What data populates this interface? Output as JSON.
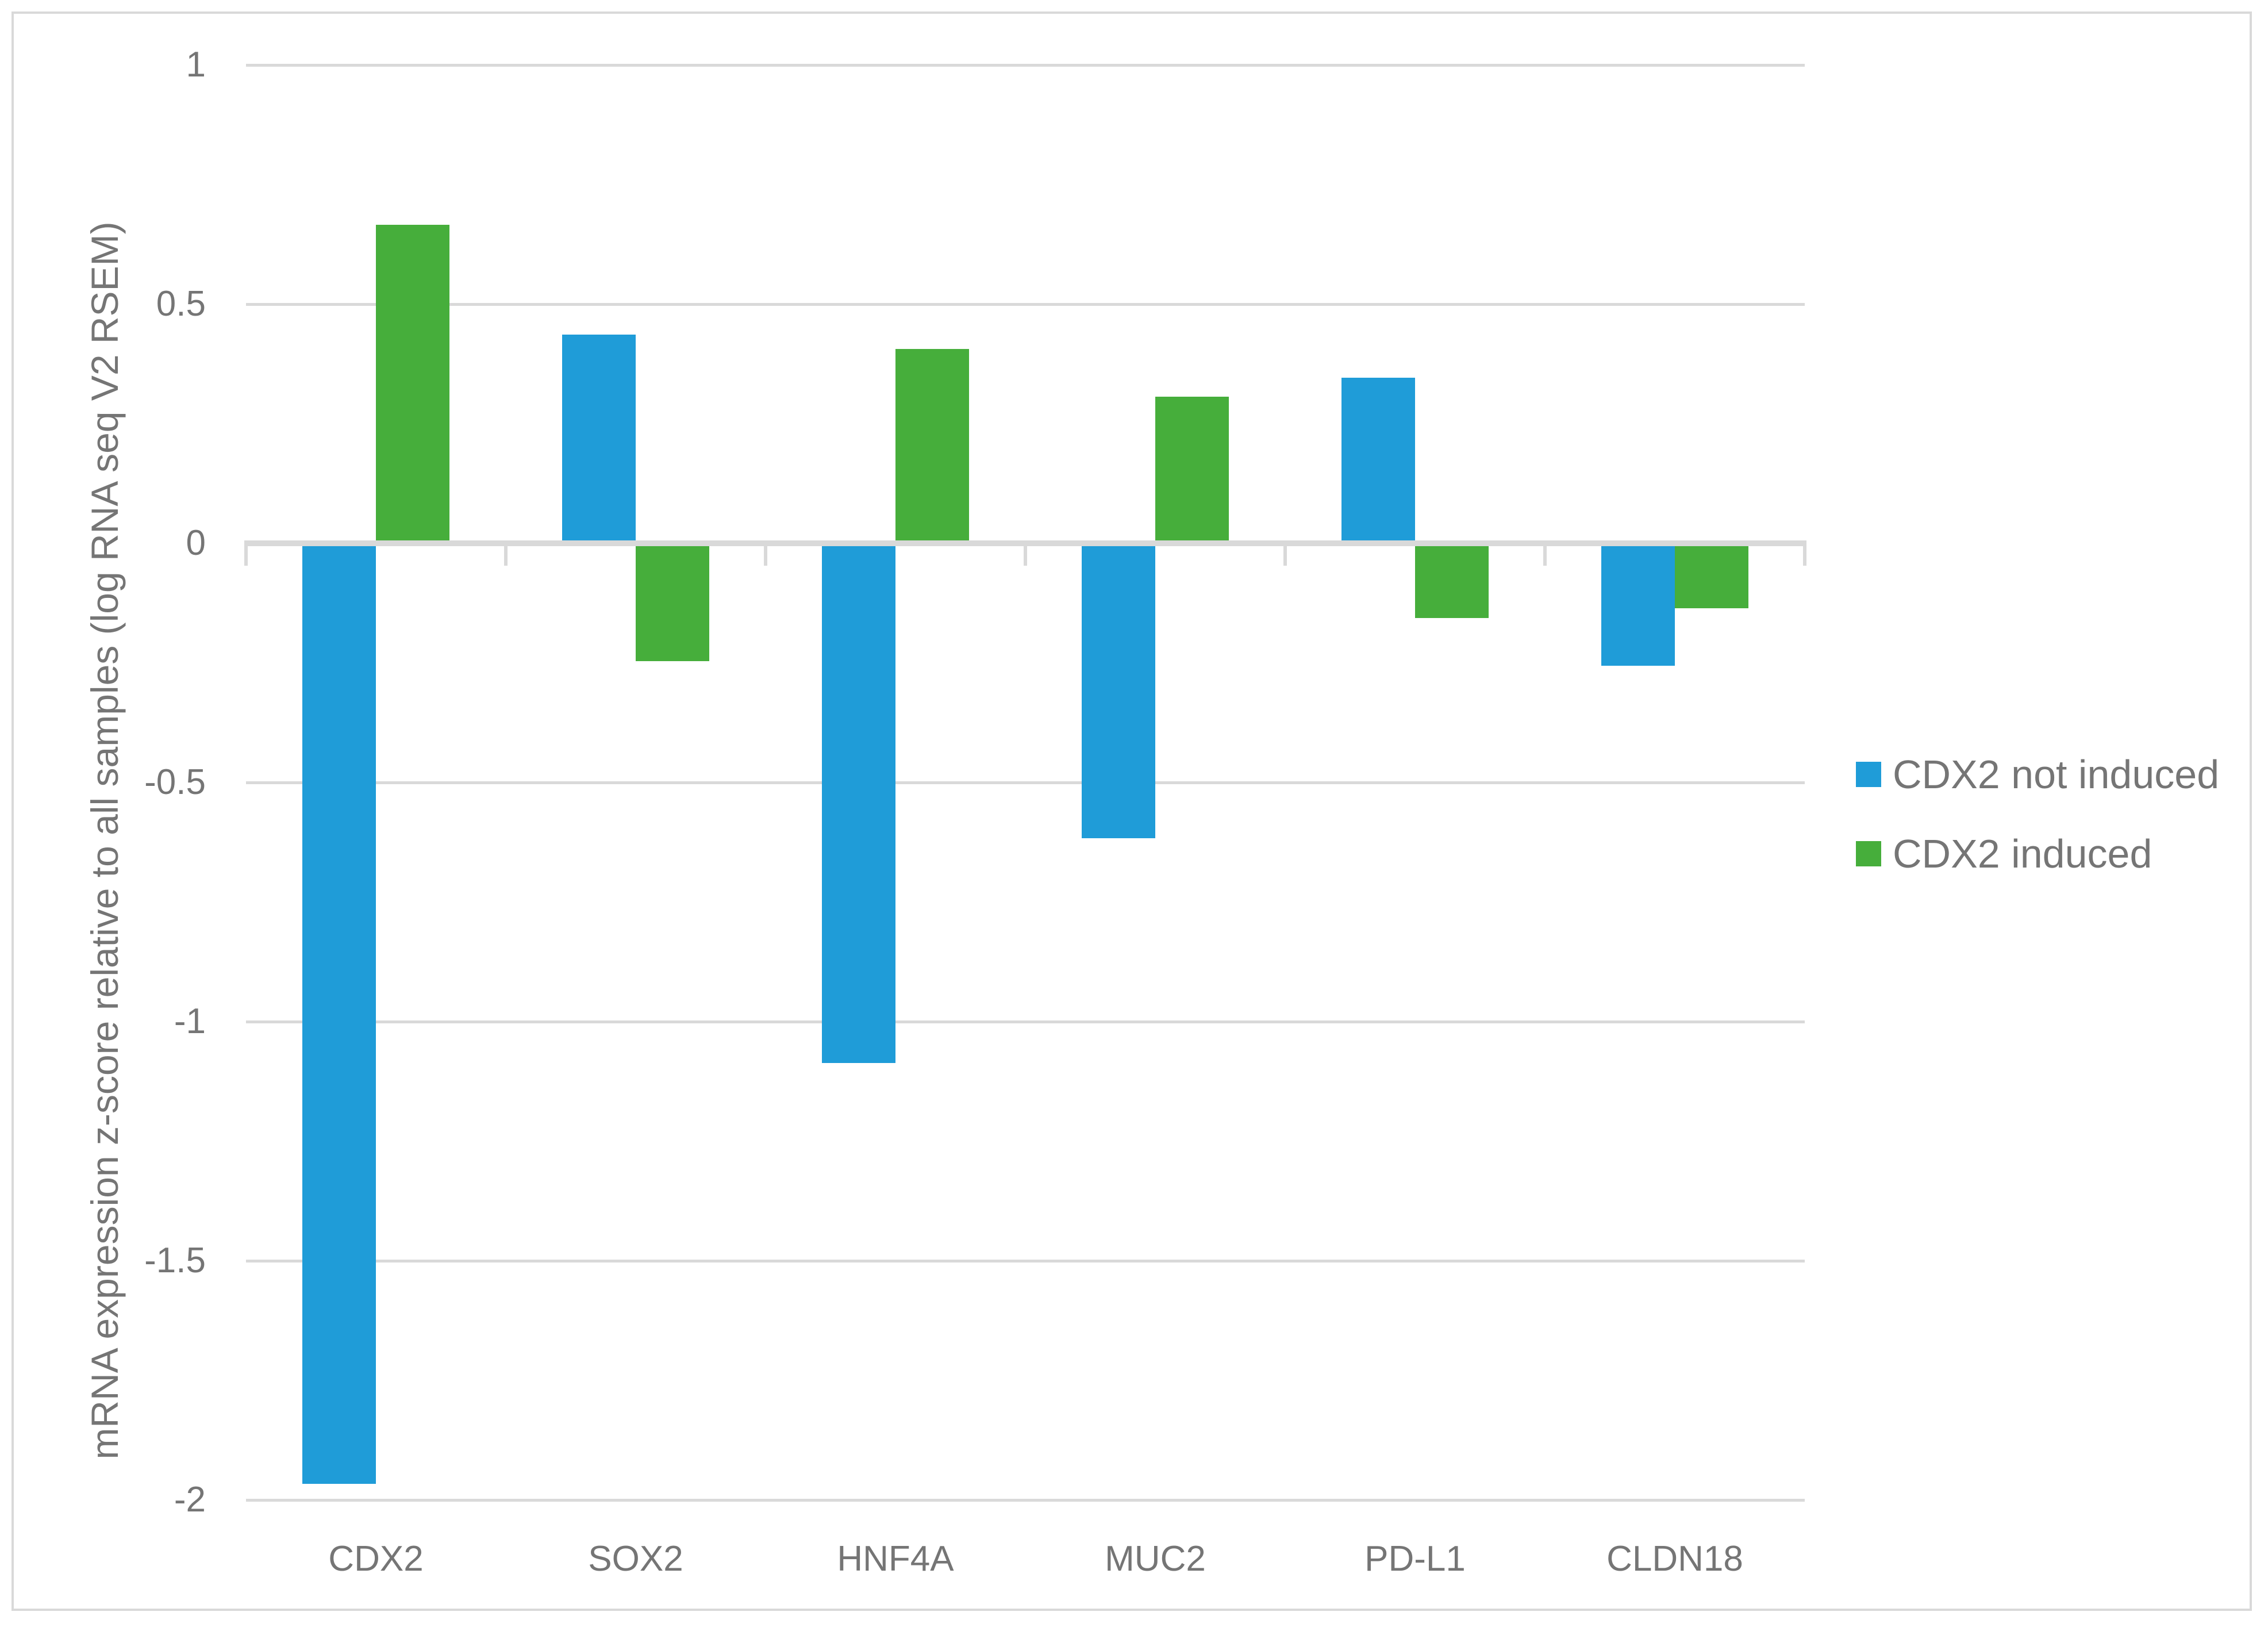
{
  "figure": {
    "background_color": "#FFFFFF",
    "border_color": "#D9D9D9"
  },
  "chart_data": {
    "type": "bar",
    "title": "",
    "xlabel": "",
    "ylabel": "mRNA expression z-score relative to all samples (log RNA seq V2 RSEM)",
    "categories": [
      "CDX2",
      "SOX2",
      "HNF4A",
      "MUC2",
      "PD-L1",
      "CLDN18"
    ],
    "series": [
      {
        "name": "CDX2 not induced",
        "color": "#1F9CD8",
        "values": [
          -1.96,
          0.43,
          -1.08,
          -0.61,
          0.34,
          -0.25
        ]
      },
      {
        "name": "CDX2 induced",
        "color": "#46AE3B",
        "values": [
          0.66,
          -0.24,
          0.4,
          0.3,
          -0.15,
          -0.13
        ]
      }
    ],
    "ylim": [
      -2,
      1
    ],
    "yticks": [
      {
        "label": "1",
        "value": 1
      },
      {
        "label": "0.5",
        "value": 0.5
      },
      {
        "label": "0",
        "value": 0
      },
      {
        "label": "-0.5",
        "value": -0.5
      },
      {
        "label": "-1",
        "value": -1
      },
      {
        "label": "-1.5",
        "value": -1.5
      },
      {
        "label": "-2",
        "value": -2
      }
    ],
    "grid": true,
    "legend_position": "right",
    "text_color": "#757575",
    "gridline_color": "#D9D9D9"
  }
}
